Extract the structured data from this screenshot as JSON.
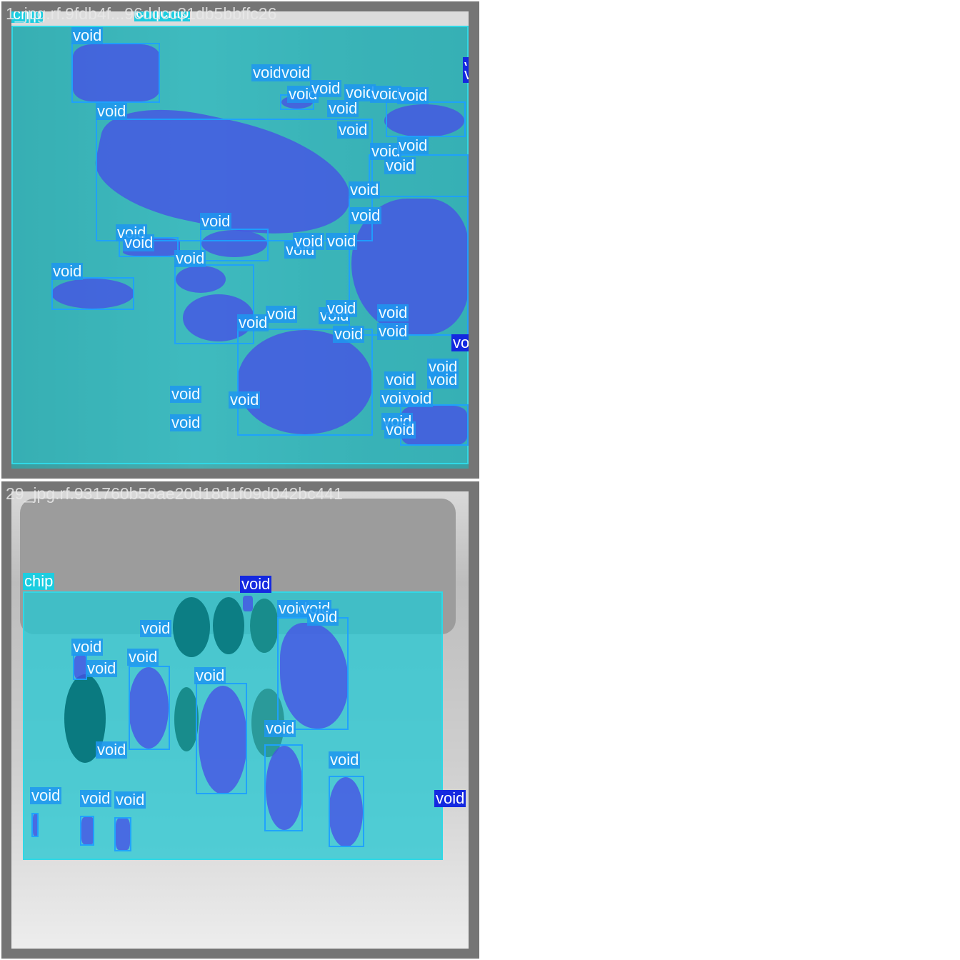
{
  "panels": [
    {
      "filename": "1_jpg.rf.9fdb4f...96ddcc31db5bbffc26",
      "chip_labels": [
        "chip",
        "chip",
        "chip"
      ],
      "void_label": "void",
      "void_count": 44
    },
    {
      "filename": "29_jpg.rf.931760b58ae20d18d1f09d042bc441",
      "chip_labels": [
        "chip"
      ],
      "void_label": "void",
      "void_count": 21
    }
  ],
  "colors": {
    "chip_box": "#30d8e6",
    "chip_fill": "#2fc3cc",
    "void_box": "#1ea0ff",
    "void_fill": "#4650e6",
    "void_label_dark": "#1428e0",
    "tile_border": "#757575"
  }
}
